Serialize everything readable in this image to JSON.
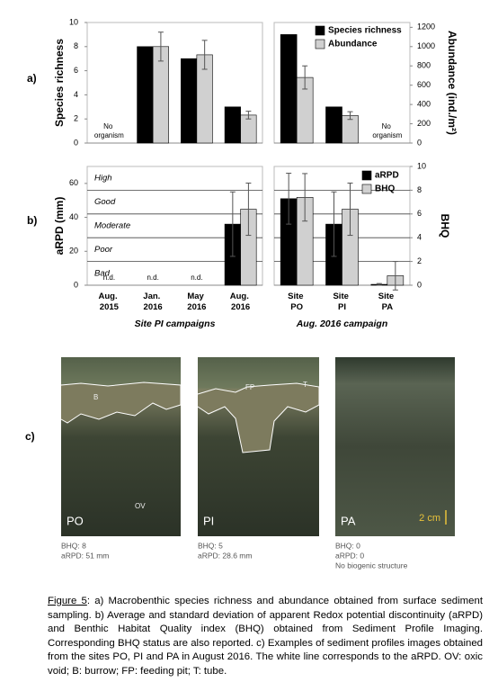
{
  "panels": [
    "a)",
    "b)",
    "c)"
  ],
  "chart_data": [
    {
      "type": "bar",
      "ylabel": "Species richness",
      "ylim": [
        0,
        10
      ],
      "yticks": [
        0,
        2,
        4,
        6,
        8,
        10
      ],
      "y2lim": [
        0,
        1250
      ],
      "series": [
        {
          "name": "Species richness",
          "color": "#000000",
          "values": [
            null,
            8,
            7,
            3
          ]
        },
        {
          "name": "Abundance",
          "color": "#d0d0d0",
          "axis": "y2",
          "values": [
            null,
            1000,
            915,
            290
          ],
          "errors": [
            null,
            150,
            150,
            40
          ]
        }
      ],
      "annotations": [
        "No organism"
      ]
    },
    {
      "type": "bar",
      "y2label": "Abundance (ind./m²)",
      "ylim": [
        0,
        10
      ],
      "y2lim": [
        0,
        1250
      ],
      "y2ticks": [
        0,
        200,
        400,
        600,
        800,
        1000,
        1200
      ],
      "legend": "upper right",
      "series": [
        {
          "name": "Species richness",
          "color": "#000000",
          "values": [
            9,
            3,
            null
          ]
        },
        {
          "name": "Abundance",
          "color": "#d0d0d0",
          "axis": "y2",
          "values": [
            680,
            285,
            null
          ],
          "errors": [
            120,
            40,
            null
          ]
        }
      ],
      "annotations": [
        "No organism"
      ]
    },
    {
      "type": "bar",
      "ylabel": "aRPD (mm)",
      "ylim": [
        0,
        70
      ],
      "yticks": [
        0,
        20,
        40,
        60
      ],
      "y2lim": [
        0,
        10
      ],
      "band_lines": [
        2,
        4,
        6,
        8
      ],
      "band_labels": [
        "Bad",
        "Poor",
        "Moderate",
        "Good",
        "High"
      ],
      "categories": [
        "Aug. 2015",
        "Jan. 2016",
        "May 2016",
        "Aug. 2016"
      ],
      "group_label": "Site PI campaigns",
      "series": [
        {
          "name": "aRPD",
          "color": "#000000",
          "values": [
            null,
            null,
            null,
            36
          ],
          "errors": [
            null,
            null,
            null,
            19
          ]
        },
        {
          "name": "BHQ",
          "color": "#d0d0d0",
          "axis": "y2",
          "values": [
            null,
            null,
            null,
            6.4
          ],
          "errors": [
            null,
            null,
            null,
            2.2
          ]
        }
      ],
      "annotations": [
        "n.d.",
        "n.d.",
        "n.d."
      ]
    },
    {
      "type": "bar",
      "y2label": "BHQ",
      "ylim": [
        0,
        70
      ],
      "y2lim": [
        0,
        10
      ],
      "y2ticks": [
        0,
        2,
        4,
        6,
        8,
        10
      ],
      "band_lines": [
        2,
        4,
        6,
        8
      ],
      "legend": "upper right",
      "categories": [
        "Site PO",
        "Site PI",
        "Site PA"
      ],
      "group_label": "Aug. 2016 campaign",
      "series": [
        {
          "name": "aRPD",
          "color": "#000000",
          "values": [
            51,
            36,
            0.5
          ],
          "errors": [
            15,
            19,
            0.5
          ]
        },
        {
          "name": "BHQ",
          "color": "#d0d0d0",
          "axis": "y2",
          "values": [
            7.4,
            6.4,
            0.8
          ],
          "errors": [
            2.0,
            2.2,
            1.2
          ]
        }
      ]
    }
  ],
  "photos": [
    {
      "label": "PO",
      "marks": [
        "B",
        "OV"
      ],
      "lines": [
        "BHQ: 8",
        "aRPD: 51 mm"
      ]
    },
    {
      "label": "PI",
      "marks": [
        "FP",
        "T"
      ],
      "lines": [
        "BHQ: 5",
        "aRPD: 28.6 mm"
      ]
    },
    {
      "label": "PA",
      "scale": "2 cm",
      "lines": [
        "BHQ: 0",
        "aRPD: 0",
        "No biogenic structure"
      ]
    }
  ],
  "caption": {
    "label": "Figure 5",
    "text": ": a) Macrobenthic species richness and abundance obtained from surface sediment sampling. b) Average and standard deviation of apparent Redox potential discontinuity (aRPD) and Benthic Habitat Quality index (BHQ) obtained from Sediment Profile Imaging. Corresponding BHQ status are also reported. c) Examples of sediment profiles images obtained from the sites PO, PI and PA in August 2016. The white line corresponds to the aRPD. OV: oxic void; B: burrow; FP: feeding pit; T: tube."
  }
}
